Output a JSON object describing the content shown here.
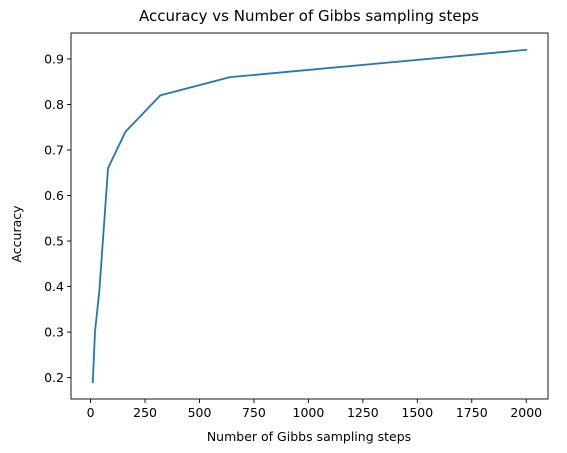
{
  "chart_data": {
    "type": "line",
    "title": "Accuracy vs Number of Gibbs sampling steps",
    "xlabel": "Number of Gibbs sampling steps",
    "ylabel": "Accuracy",
    "xlim": [
      -90,
      2100
    ],
    "ylim": [
      0.153,
      0.957
    ],
    "xticks": [
      0,
      250,
      500,
      750,
      1000,
      1250,
      1500,
      1750,
      2000
    ],
    "yticks": [
      0.2,
      0.3,
      0.4,
      0.5,
      0.6,
      0.7,
      0.8,
      0.9
    ],
    "xtick_labels": [
      "0",
      "250",
      "500",
      "750",
      "1000",
      "1250",
      "1500",
      "1750",
      "2000"
    ],
    "ytick_labels": [
      "0.2",
      "0.3",
      "0.4",
      "0.5",
      "0.6",
      "0.7",
      "0.8",
      "0.9"
    ],
    "grid": false,
    "legend": false,
    "series": [
      {
        "color": "#1f77b4",
        "x": [
          10,
          20,
          40,
          80,
          160,
          320,
          640,
          2000
        ],
        "y": [
          0.19,
          0.3,
          0.39,
          0.66,
          0.74,
          0.82,
          0.86,
          0.92
        ]
      }
    ]
  }
}
